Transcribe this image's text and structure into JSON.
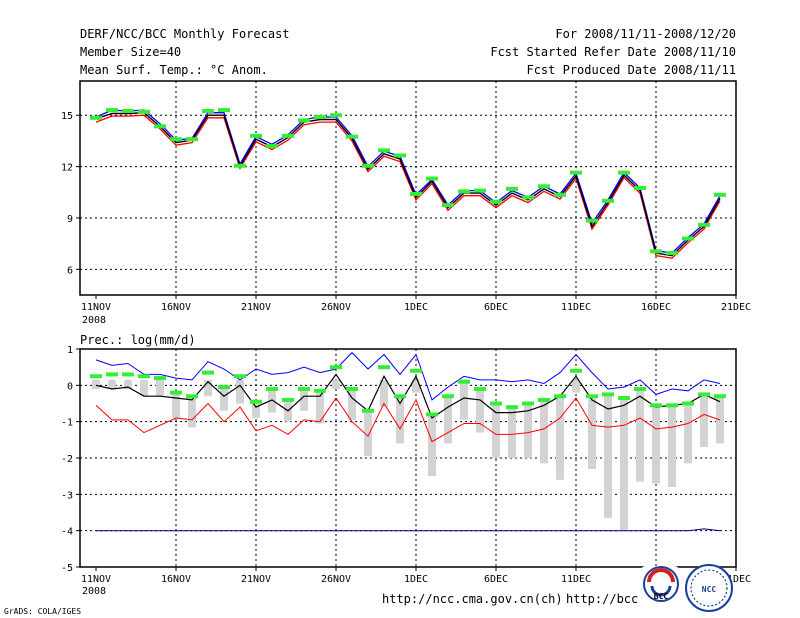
{
  "header": {
    "title": "DERF/NCC/BCC Monthly Forecast",
    "member_size": "Member Size=40",
    "variable": "Mean Surf. Temp.: °C Anom.",
    "period": "For 2008/11/11-2008/12/20",
    "started": "Fcst Started Refer Date 2008/11/10",
    "produced": "Fcst Produced Date 2008/11/11"
  },
  "bottom_title": "Prec.: log(mm/d)",
  "year_label": "2008",
  "footer": {
    "credit": "GrADS: COLA/IGES",
    "url_left": "http://ncc.cma.gov.cn(ch)",
    "url_right": "http://bcc.c",
    "logo_left_text": "BCC",
    "logo_right_text": "NCC"
  },
  "colors": {
    "blue": "#0000ff",
    "red": "#ff0000",
    "black": "#000000",
    "green": "#33ee33",
    "gray": "#d3d3d3",
    "line_blue": "#00008b"
  },
  "chart_data": [
    {
      "type": "line",
      "title": "Mean Surf. Temp.: °C Anom.",
      "xlabel": "",
      "ylabel": "",
      "x_tick_labels": [
        "11NOV",
        "16NOV",
        "21NOV",
        "26NOV",
        "1DEC",
        "6DEC",
        "11DEC",
        "16DEC",
        "21DEC"
      ],
      "xlim": [
        0,
        39
      ],
      "ylim": [
        4.5,
        17
      ],
      "yticks": [
        "6",
        "9",
        "12",
        "15"
      ],
      "series": [
        {
          "name": "mean",
          "color": "black",
          "values": [
            14.8,
            15.1,
            15.1,
            15.15,
            14.35,
            13.4,
            13.55,
            15.0,
            15.0,
            12.0,
            13.6,
            13.15,
            13.7,
            14.6,
            14.75,
            14.75,
            13.65,
            11.85,
            12.75,
            12.45,
            10.2,
            11.15,
            9.6,
            10.45,
            10.45,
            9.75,
            10.45,
            10.05,
            10.7,
            10.25,
            11.45,
            8.5,
            9.9,
            11.5,
            10.6,
            6.95,
            6.8,
            7.7,
            8.5,
            10.15
          ]
        },
        {
          "name": "upper",
          "color": "blue",
          "values": [
            14.9,
            15.3,
            15.25,
            15.3,
            14.5,
            13.55,
            13.65,
            15.15,
            15.15,
            12.15,
            13.75,
            13.3,
            13.85,
            14.75,
            14.9,
            14.9,
            13.8,
            12.0,
            12.9,
            12.6,
            10.35,
            11.25,
            9.75,
            10.6,
            10.6,
            9.9,
            10.6,
            10.2,
            10.85,
            10.4,
            11.6,
            8.7,
            10.05,
            11.65,
            10.75,
            7.1,
            6.95,
            7.85,
            8.65,
            10.3
          ]
        },
        {
          "name": "lower",
          "color": "red",
          "values": [
            14.6,
            14.95,
            14.95,
            15.0,
            14.2,
            13.25,
            13.4,
            14.85,
            14.85,
            11.9,
            13.45,
            13.0,
            13.55,
            14.45,
            14.6,
            14.6,
            13.5,
            11.7,
            12.6,
            12.3,
            10.05,
            11.0,
            9.45,
            10.3,
            10.3,
            9.6,
            10.3,
            9.9,
            10.55,
            10.1,
            11.3,
            8.35,
            9.75,
            11.35,
            10.45,
            6.8,
            6.65,
            7.55,
            8.35,
            10.0
          ]
        },
        {
          "name": "observed",
          "color": "green",
          "values": [
            14.85,
            15.3,
            15.25,
            15.2,
            14.35,
            13.6,
            13.6,
            15.25,
            15.3,
            12.05,
            13.8,
            13.2,
            13.8,
            14.7,
            14.9,
            15.0,
            13.75,
            12.05,
            12.95,
            12.65,
            10.4,
            11.3,
            9.75,
            10.55,
            10.6,
            9.95,
            10.7,
            10.2,
            10.85,
            10.35,
            11.65,
            8.85,
            10.0,
            11.65,
            10.75,
            7.05,
            6.95,
            7.8,
            8.6,
            10.35
          ]
        }
      ]
    },
    {
      "type": "line",
      "title": "Prec.: log(mm/d)",
      "xlabel": "",
      "ylabel": "",
      "x_tick_labels": [
        "11NOV",
        "16NOV",
        "21NOV",
        "26NOV",
        "1DEC",
        "6DEC",
        "11DEC",
        "16DEC",
        "21DEC"
      ],
      "xlim": [
        0,
        39
      ],
      "ylim": [
        -5,
        1
      ],
      "yticks": [
        "-5",
        "-4",
        "-3",
        "-2",
        "-1",
        "0",
        "1"
      ],
      "series": [
        {
          "name": "upper",
          "color": "blue",
          "values": [
            0.7,
            0.55,
            0.6,
            0.3,
            0.3,
            0.2,
            0.15,
            0.65,
            0.45,
            0.15,
            0.45,
            0.3,
            0.35,
            0.5,
            0.35,
            0.45,
            0.9,
            0.45,
            0.85,
            0.3,
            0.85,
            -0.4,
            -0.05,
            0.25,
            0.15,
            0.15,
            0.1,
            0.15,
            0.05,
            0.35,
            0.85,
            0.35,
            -0.1,
            -0.05,
            0.15,
            -0.25,
            -0.1,
            -0.15,
            0.15,
            0.05
          ]
        },
        {
          "name": "mean",
          "color": "black",
          "values": [
            0.0,
            -0.1,
            -0.05,
            -0.3,
            -0.3,
            -0.35,
            -0.4,
            0.1,
            -0.3,
            0.0,
            -0.6,
            -0.4,
            -0.7,
            -0.3,
            -0.3,
            0.3,
            -0.35,
            -0.7,
            0.25,
            -0.5,
            0.25,
            -0.9,
            -0.6,
            -0.35,
            -0.4,
            -0.75,
            -0.75,
            -0.7,
            -0.55,
            -0.3,
            0.25,
            -0.4,
            -0.65,
            -0.55,
            -0.3,
            -0.6,
            -0.55,
            -0.5,
            -0.25,
            -0.45
          ]
        },
        {
          "name": "lower",
          "color": "red",
          "values": [
            -0.55,
            -0.95,
            -0.95,
            -1.3,
            -1.1,
            -0.9,
            -0.95,
            -0.5,
            -1.0,
            -0.6,
            -1.25,
            -1.1,
            -1.35,
            -0.95,
            -1.0,
            -0.35,
            -1.0,
            -1.4,
            -0.5,
            -1.2,
            -0.4,
            -1.55,
            -1.3,
            -1.05,
            -1.05,
            -1.35,
            -1.35,
            -1.3,
            -1.2,
            -0.9,
            -0.35,
            -1.1,
            -1.15,
            -1.1,
            -0.9,
            -1.2,
            -1.15,
            -1.05,
            -0.8,
            -0.95
          ]
        },
        {
          "name": "green_marks",
          "color": "green",
          "values": [
            0.25,
            0.3,
            0.3,
            0.25,
            0.2,
            -0.2,
            -0.3,
            0.35,
            -0.05,
            0.25,
            -0.45,
            -0.1,
            -0.4,
            -0.1,
            -0.15,
            0.5,
            -0.1,
            -0.7,
            0.5,
            -0.3,
            0.4,
            -0.8,
            -0.3,
            0.1,
            -0.1,
            -0.5,
            -0.6,
            -0.5,
            -0.4,
            -0.3,
            0.4,
            -0.3,
            -0.25,
            -0.35,
            -0.1,
            -0.55,
            -0.55,
            -0.5,
            -0.25,
            -0.3
          ]
        },
        {
          "name": "gray_bar_bottom",
          "color": "gray",
          "values": [
            -0.1,
            -0.1,
            -0.1,
            -0.3,
            -0.3,
            -0.9,
            -1.15,
            -0.3,
            -0.7,
            -0.5,
            -0.9,
            -0.75,
            -1.0,
            -0.7,
            -1.05,
            -0.1,
            -0.95,
            -1.95,
            -0.6,
            -1.6,
            -0.2,
            -2.5,
            -1.6,
            -0.95,
            -1.3,
            -2.0,
            -2.0,
            -2.0,
            -2.15,
            -2.6,
            -0.2,
            -2.3,
            -3.65,
            -4.0,
            -2.65,
            -2.7,
            -2.8,
            -2.15,
            -1.7,
            -1.6
          ]
        },
        {
          "name": "bottom_line",
          "color": "line_blue",
          "values": [
            -4.0,
            -4.0,
            -4.0,
            -4.0,
            -4.0,
            -4.0,
            -4.0,
            -4.0,
            -4.0,
            -4.0,
            -4.0,
            -4.0,
            -4.0,
            -4.0,
            -4.0,
            -4.0,
            -4.0,
            -4.0,
            -4.0,
            -4.0,
            -4.0,
            -4.0,
            -4.0,
            -4.0,
            -4.0,
            -4.0,
            -4.0,
            -4.0,
            -4.0,
            -4.0,
            -4.0,
            -4.0,
            -4.0,
            -4.0,
            -4.0,
            -4.0,
            -4.0,
            -4.0,
            -3.95,
            -4.0
          ]
        }
      ]
    }
  ]
}
